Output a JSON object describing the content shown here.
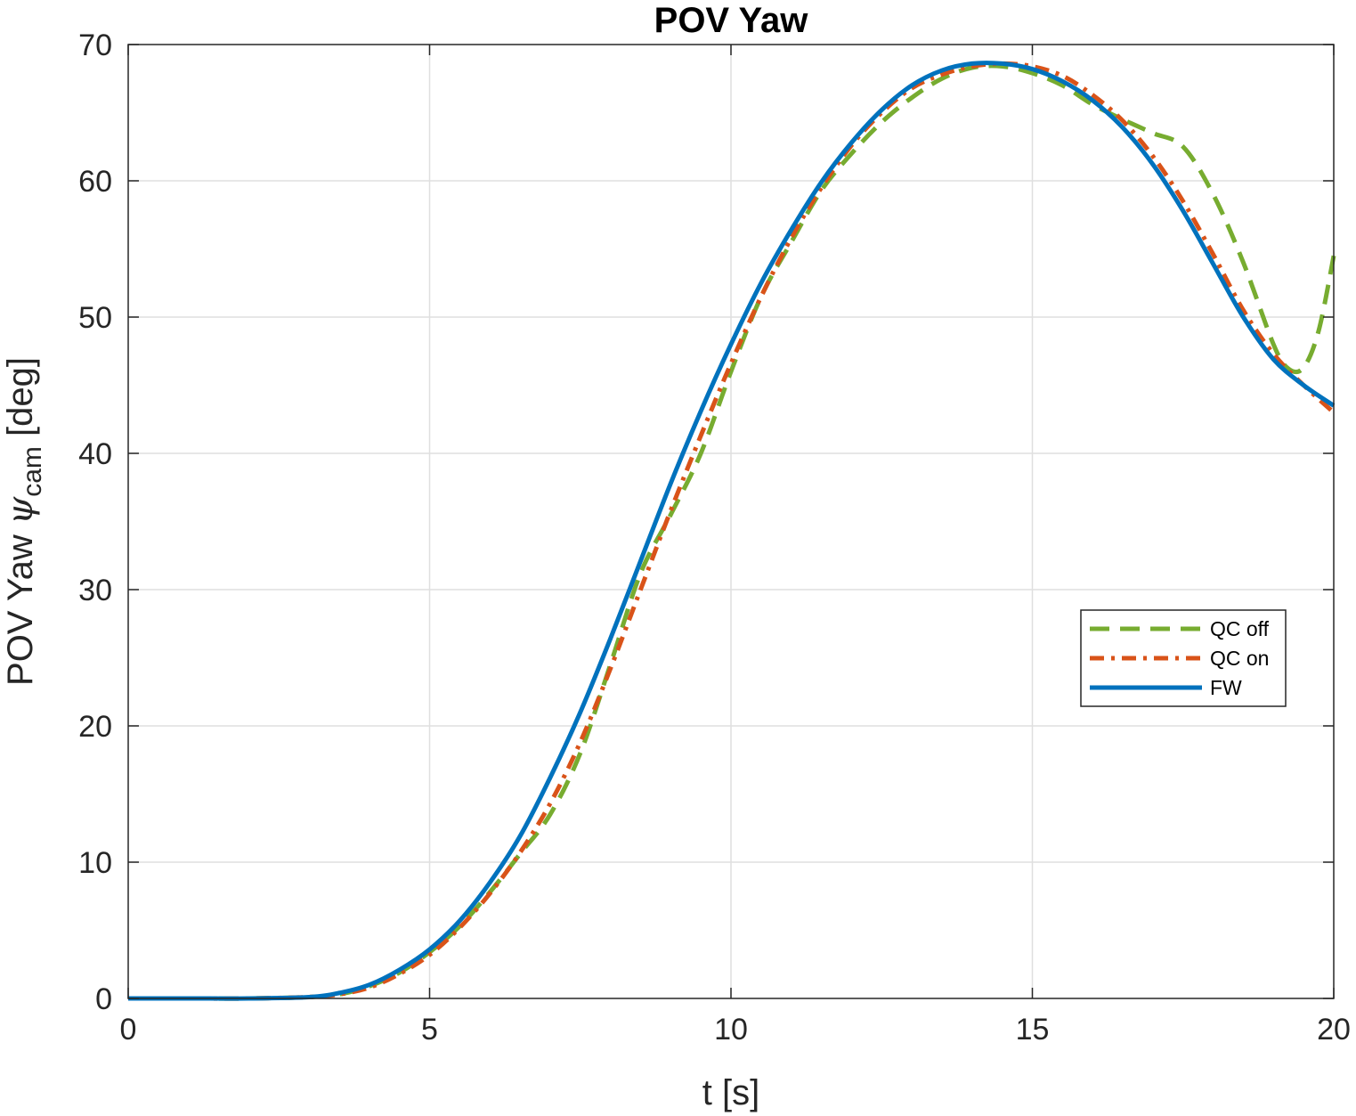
{
  "chart_data": {
    "type": "line",
    "title": "POV Yaw",
    "xlabel": "t [s]",
    "ylabel": {
      "prefix": "POV Yaw ",
      "symbol": "ψ",
      "subscript": "cam",
      "suffix": " [deg]"
    },
    "xlim": [
      0,
      20
    ],
    "ylim": [
      0,
      70
    ],
    "xticks": [
      0,
      5,
      10,
      15,
      20
    ],
    "yticks": [
      0,
      10,
      20,
      30,
      40,
      50,
      60,
      70
    ],
    "grid": true,
    "legend_position": "right",
    "series": [
      {
        "name": "QC off",
        "color": "#77AC30",
        "style": "dashed",
        "x": [
          0,
          1,
          2,
          3,
          3.5,
          4,
          4.5,
          5,
          5.5,
          6,
          6.5,
          7,
          7.5,
          8,
          8.5,
          9,
          9.5,
          10,
          10.5,
          11,
          11.5,
          12,
          12.5,
          13,
          13.5,
          14,
          14.5,
          15,
          15.5,
          16,
          16.5,
          17,
          17.5,
          18,
          18.5,
          19,
          19.25,
          19.5,
          19.75,
          20
        ],
        "values": [
          0,
          0,
          0,
          0.1,
          0.3,
          0.9,
          1.9,
          3.4,
          5.3,
          7.8,
          10.6,
          13.5,
          18.0,
          24.5,
          31.2,
          35.5,
          40.0,
          46.0,
          51.5,
          55.5,
          59.3,
          62.0,
          64.3,
          66.1,
          67.5,
          68.3,
          68.4,
          67.9,
          67.0,
          65.6,
          64.5,
          63.5,
          62.5,
          59.0,
          54.0,
          48.0,
          46.2,
          46.3,
          49.0,
          54.5
        ]
      },
      {
        "name": "QC on",
        "color": "#D95319",
        "style": "dashdot",
        "x": [
          0,
          1,
          2,
          3,
          3.5,
          4,
          4.5,
          5,
          5.5,
          6,
          6.5,
          7,
          7.5,
          8,
          8.5,
          9,
          9.5,
          10,
          10.5,
          11,
          11.5,
          12,
          12.5,
          13,
          13.5,
          14,
          14.5,
          15,
          15.5,
          16,
          16.5,
          17,
          17.5,
          18,
          18.5,
          19,
          19.5,
          20
        ],
        "values": [
          0,
          0,
          0,
          0.1,
          0.3,
          0.8,
          1.8,
          3.2,
          5.2,
          7.7,
          10.7,
          14.3,
          18.8,
          24.2,
          30.0,
          35.8,
          41.3,
          46.6,
          51.5,
          55.8,
          59.5,
          62.6,
          65.0,
          66.8,
          67.8,
          68.4,
          68.6,
          68.4,
          67.7,
          66.3,
          64.4,
          61.8,
          58.5,
          54.6,
          50.5,
          47.3,
          45.0,
          43.0
        ]
      },
      {
        "name": "FW",
        "color": "#0072BD",
        "style": "solid",
        "x": [
          0,
          1,
          2,
          3,
          3.5,
          4,
          4.5,
          5,
          5.5,
          6,
          6.5,
          7,
          7.5,
          8,
          8.5,
          9,
          9.5,
          10,
          10.5,
          11,
          11.5,
          12,
          12.5,
          13,
          13.5,
          14,
          14.5,
          15,
          15.5,
          16,
          16.5,
          17,
          17.5,
          18,
          18.5,
          19,
          19.5,
          20
        ],
        "values": [
          0,
          0,
          0,
          0.1,
          0.4,
          1.0,
          2.1,
          3.6,
          5.7,
          8.5,
          11.9,
          16.2,
          21.0,
          26.4,
          32.1,
          37.8,
          43.1,
          48.0,
          52.5,
          56.4,
          59.9,
          62.8,
          65.2,
          67.0,
          68.1,
          68.6,
          68.6,
          68.2,
          67.3,
          65.9,
          63.9,
          61.2,
          57.8,
          53.9,
          50.0,
          46.9,
          45.0,
          43.5
        ]
      }
    ]
  }
}
